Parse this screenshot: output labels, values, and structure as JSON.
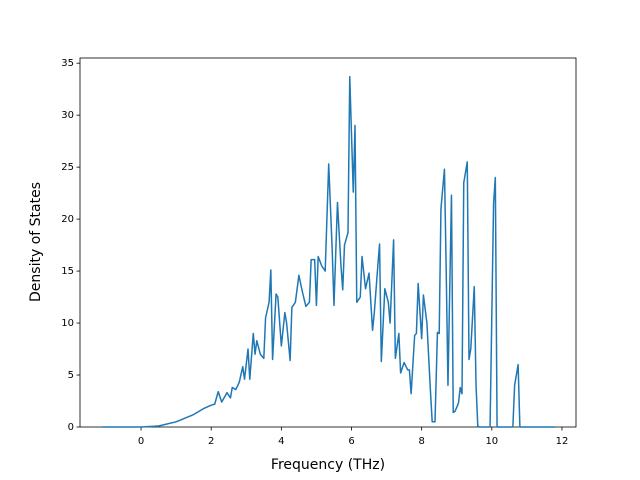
{
  "chart_data": {
    "type": "line",
    "xlabel": "Frequency (THz)",
    "ylabel": "Density of States",
    "x": [
      -1.1,
      0,
      0.5,
      1,
      1.5,
      1.8,
      2,
      2.1,
      2.2,
      2.3,
      2.45,
      2.55,
      2.6,
      2.7,
      2.8,
      2.9,
      2.95,
      3.05,
      3.1,
      3.2,
      3.25,
      3.3,
      3.4,
      3.5,
      3.55,
      3.65,
      3.7,
      3.75,
      3.85,
      3.9,
      4.0,
      4.1,
      4.15,
      4.25,
      4.3,
      4.4,
      4.5,
      4.6,
      4.7,
      4.8,
      4.85,
      4.95,
      5.0,
      5.05,
      5.15,
      5.25,
      5.35,
      5.45,
      5.5,
      5.6,
      5.7,
      5.75,
      5.8,
      5.9,
      5.95,
      6.05,
      6.1,
      6.15,
      6.25,
      6.3,
      6.4,
      6.5,
      6.6,
      6.65,
      6.75,
      6.8,
      6.85,
      6.95,
      7.05,
      7.1,
      7.2,
      7.25,
      7.35,
      7.4,
      7.5,
      7.6,
      7.65,
      7.7,
      7.8,
      7.85,
      7.9,
      8.0,
      8.05,
      8.15,
      8.25,
      8.3,
      8.38,
      8.45,
      8.5,
      8.55,
      8.65,
      8.7,
      8.75,
      8.85,
      8.9,
      8.95,
      9.05,
      9.1,
      9.15,
      9.2,
      9.3,
      9.35,
      9.4,
      9.5,
      9.55,
      9.6,
      9.65,
      9.95,
      10.05,
      10.1,
      10.15,
      10.6,
      10.65,
      10.75,
      10.8,
      11.8
    ],
    "series": [
      {
        "color": "#1f77b4",
        "values": [
          0,
          0,
          0.1,
          0.5,
          1.2,
          1.8,
          2.1,
          2.2,
          3.4,
          2.4,
          3.3,
          2.8,
          3.8,
          3.6,
          4.3,
          5.8,
          4.6,
          7.5,
          4.6,
          9,
          7,
          8.3,
          7,
          6.6,
          10.5,
          12,
          15.1,
          6.5,
          12.8,
          12.5,
          7.8,
          11,
          10,
          6.4,
          11.5,
          12,
          14.6,
          13,
          11.6,
          12,
          16.1,
          16.1,
          11.7,
          16.4,
          15.5,
          15,
          25.3,
          17,
          11.7,
          21.6,
          15.5,
          13.2,
          17.5,
          18.7,
          33.7,
          22.6,
          29,
          12,
          12.5,
          16.4,
          13.3,
          14.8,
          9.3,
          11,
          15.5,
          17.6,
          6.3,
          13.3,
          12,
          10,
          18,
          6.6,
          9,
          5.2,
          6.2,
          5.5,
          5.5,
          3.2,
          8.8,
          9,
          13.8,
          8.5,
          12.7,
          10,
          3.5,
          0.5,
          0.5,
          9.1,
          9,
          21,
          24.8,
          15,
          4,
          22.3,
          1.4,
          1.5,
          2.3,
          3.8,
          3.2,
          23.5,
          25.5,
          6.5,
          7.5,
          13.5,
          4,
          0.1,
          0,
          0,
          21.5,
          24,
          0,
          0,
          4,
          6,
          0,
          0
        ]
      }
    ],
    "xlim": [
      -1.74,
      12.4
    ],
    "xticks": [
      0,
      2,
      4,
      6,
      8,
      10,
      12
    ],
    "ylim": [
      0,
      35.5
    ],
    "yticks": [
      0,
      5,
      10,
      15,
      20,
      25,
      30,
      35
    ]
  }
}
